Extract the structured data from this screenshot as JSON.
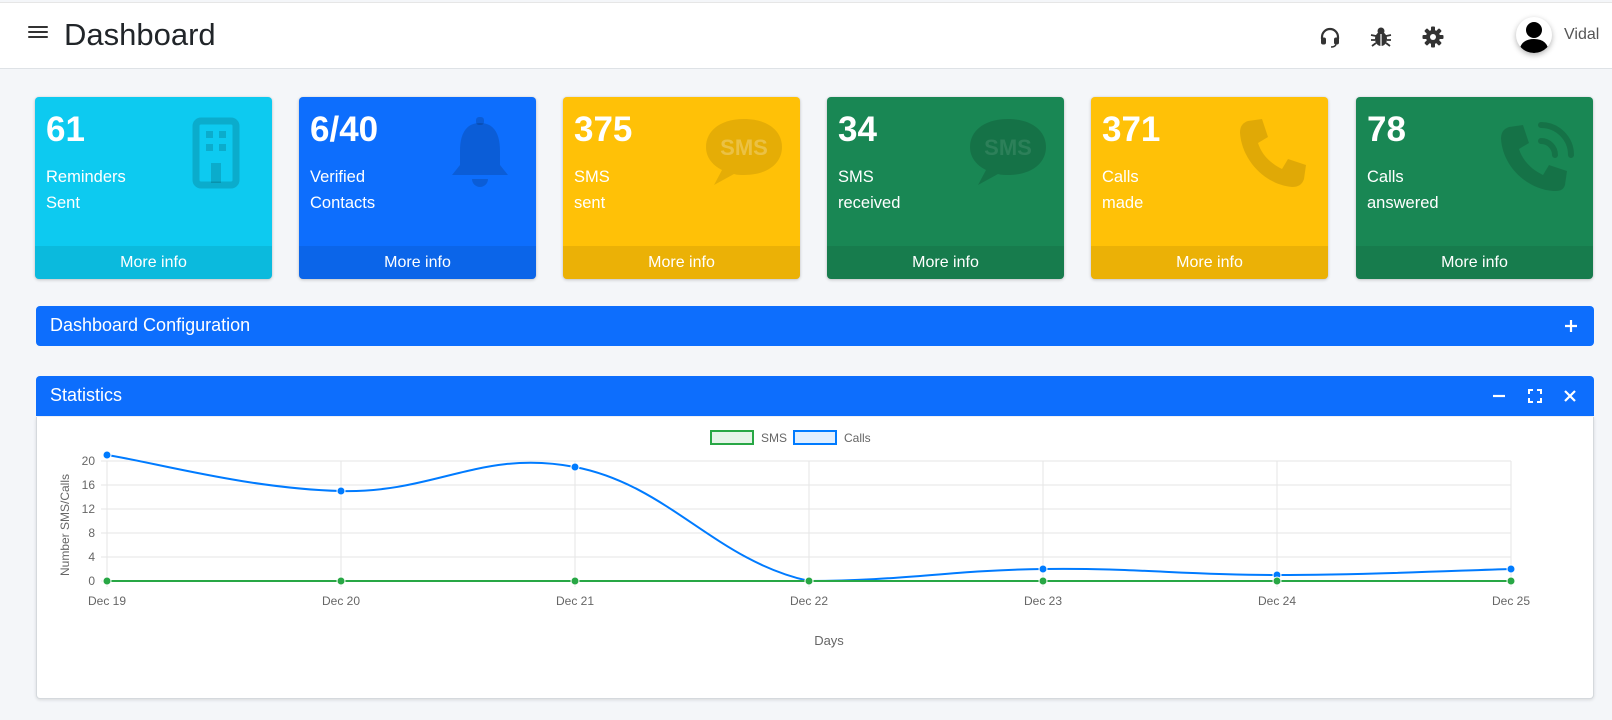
{
  "header": {
    "title": "Dashboard",
    "user_name": "Vidal",
    "icons": [
      "menu-icon",
      "headset-icon",
      "bug-icon",
      "gear-icon",
      "user-avatar"
    ]
  },
  "boxes": [
    {
      "value": "61",
      "label1": "Reminders",
      "label2": "Sent",
      "footer": "More info",
      "color": "#0dcaf0",
      "icon": "building-icon"
    },
    {
      "value": "6/40",
      "label1": "Verified",
      "label2": "Contacts",
      "footer": "More info",
      "color": "#0d6efd",
      "icon": "bell-icon"
    },
    {
      "value": "375",
      "label1": "SMS",
      "label2": "sent",
      "footer": "More info",
      "color": "#ffc107",
      "icon": "sms-icon"
    },
    {
      "value": "34",
      "label1": "SMS",
      "label2": "received",
      "footer": "More info",
      "color": "#198754",
      "icon": "sms-icon"
    },
    {
      "value": "371",
      "label1": "Calls",
      "label2": "made",
      "footer": "More info",
      "color": "#ffc107",
      "icon": "phone-icon"
    },
    {
      "value": "78",
      "label1": "Calls",
      "label2": "answered",
      "footer": "More info",
      "color": "#198754",
      "icon": "phone-ringing-icon"
    }
  ],
  "config_card": {
    "title": "Dashboard Configuration",
    "tool": "plus-icon"
  },
  "stats_card": {
    "title": "Statistics",
    "tools": [
      "minus-icon",
      "expand-icon",
      "close-icon"
    ]
  },
  "colors": {
    "primary": "#0d6efd",
    "sms": "#28a745",
    "calls": "#007bff"
  },
  "chart_data": {
    "type": "line",
    "categories": [
      "Dec 19",
      "Dec 20",
      "Dec 21",
      "Dec 22",
      "Dec 23",
      "Dec 24",
      "Dec 25"
    ],
    "series": [
      {
        "name": "SMS",
        "values": [
          0,
          0,
          0,
          0,
          0,
          0,
          0
        ],
        "color": "#28a745"
      },
      {
        "name": "Calls",
        "values": [
          21,
          15,
          19,
          0,
          2,
          1,
          2
        ],
        "color": "#007bff"
      }
    ],
    "xlabel": "Days",
    "ylabel": "Number SMS/Calls",
    "yticks": [
      0,
      4,
      8,
      12,
      16,
      20
    ],
    "ylim": [
      0,
      20
    ],
    "grid": true,
    "legend_position": "top-center"
  }
}
